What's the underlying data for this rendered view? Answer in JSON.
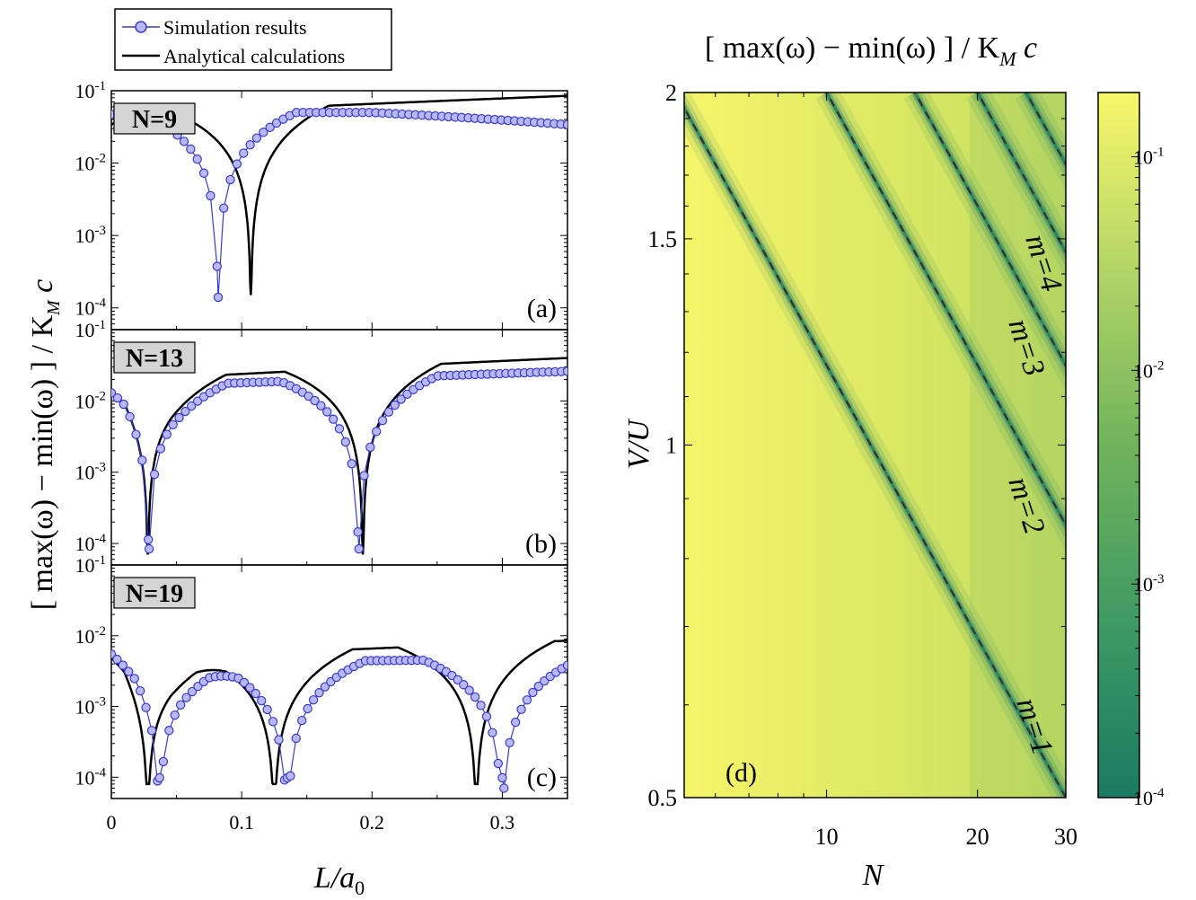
{
  "colors": {
    "simulation": "#3a3acc",
    "simulation_fill": "#b8b8f5",
    "analytical": "#000000",
    "tag_bg": "#d4d4d4",
    "cmap_low": "#1b7a62",
    "cmap_mid": "#8fc157",
    "cmap_high": "#f9f76a"
  },
  "legend": {
    "simulation": "Simulation results",
    "analytical": "Analytical calculations"
  },
  "left_ylabel": {
    "main": "[ max(ω) − min(ω) ] / K",
    "sub": "M",
    "tail": " c"
  },
  "left_xlabel": {
    "main": "L/a",
    "sub": "0"
  },
  "left_ticks": [
    "0",
    "0.1",
    "0.2",
    "0.3"
  ],
  "chart_data": [
    {
      "type": "line",
      "panel": "(a)",
      "tag": "N=9",
      "xlabel": "L/a0",
      "ylabel": "[max(ω) − min(ω)] / K_M c",
      "xlim": [
        0,
        0.35
      ],
      "ylim": [
        5e-05,
        0.1
      ],
      "yscale": "log",
      "ytick_labels": [
        "10-4",
        "10-3",
        "10-2",
        "10-1"
      ],
      "series": [
        {
          "name": "Simulation results",
          "dips": [
            0.082
          ],
          "min": 0.0001,
          "y0": 0.047,
          "plateau": 0.05,
          "end": 0.034,
          "tail": 0.0,
          "points": 70
        },
        {
          "name": "Analytical calculations",
          "dips": [
            0.107
          ],
          "min": 0.00015,
          "y0": 0.034,
          "plateau": 0.048,
          "end": 0.085,
          "tail": 1.0
        }
      ]
    },
    {
      "type": "line",
      "panel": "(b)",
      "tag": "N=13",
      "xlabel": "L/a0",
      "ylabel": "[max(ω) − min(ω)] / K_M c",
      "xlim": [
        0,
        0.35
      ],
      "ylim": [
        5e-05,
        0.1
      ],
      "yscale": "log",
      "ytick_labels": [
        "10-4",
        "10-3",
        "10-2",
        "10-1"
      ],
      "series": [
        {
          "name": "Simulation results",
          "dips": [
            0.029,
            0.19
          ],
          "min": 6e-05,
          "y0": 0.013,
          "plateau": 0.016,
          "end": 0.026,
          "tail": 1.0,
          "points": 75
        },
        {
          "name": "Analytical calculations",
          "dips": [
            0.028,
            0.193
          ],
          "min": 7e-05,
          "y0": 0.013,
          "plateau": 0.02,
          "end": 0.04,
          "tail": 1.0
        }
      ]
    },
    {
      "type": "line",
      "panel": "(c)",
      "tag": "N=19",
      "xlabel": "L/a0",
      "ylabel": "[max(ω) − min(ω)] / K_M c",
      "xlim": [
        0,
        0.35
      ],
      "ylim": [
        5e-05,
        0.1
      ],
      "yscale": "log",
      "ytick_labels": [
        "10-4",
        "10-3",
        "10-2",
        "10-1"
      ],
      "series": [
        {
          "name": "Simulation results",
          "dips": [
            0.037,
            0.135,
            0.3
          ],
          "min": 7e-05,
          "y0": 0.0055,
          "plateau": 0.0042,
          "end": 0.0047,
          "tail": 1.0,
          "points": 80
        },
        {
          "name": "Analytical calculations",
          "dips": [
            0.028,
            0.125,
            0.28
          ],
          "min": 8e-05,
          "y0": 0.0048,
          "plateau": 0.0048,
          "end": 0.0085,
          "tail": 1.0
        }
      ]
    },
    {
      "type": "heatmap",
      "panel": "(d)",
      "title": "[max(ω) − min(ω)] / K_M c",
      "xlabel": "N",
      "ylabel": "V/U",
      "xlim": [
        5,
        30
      ],
      "xscale": "log",
      "ylim": [
        0.5,
        2
      ],
      "yscale": "log",
      "x_ticks": [
        10,
        20,
        30
      ],
      "y_ticks": [
        0.5,
        1,
        1.5,
        2
      ],
      "colorbar": {
        "range": [
          0.0001,
          0.2
        ],
        "scale": "log",
        "tick_labels": [
          "10-4",
          "10-3",
          "10-2",
          "10-1"
        ]
      },
      "mode_lines": [
        {
          "label": "m=1",
          "N_at_V05": 30,
          "N_at_V2": 5
        },
        {
          "label": "m=2",
          "N_at_V05": 60,
          "N_at_V2": 10
        },
        {
          "label": "m=3",
          "N_at_V05": 90,
          "N_at_V2": 15
        },
        {
          "label": "m=4",
          "N_at_V05": 120,
          "N_at_V2": 20
        },
        {
          "label": "",
          "N_at_V05": 150,
          "N_at_V2": 25
        }
      ]
    }
  ],
  "right_title": {
    "main": "[ max(ω) − min(ω) ] / K",
    "sub": "M",
    "tail": " c"
  },
  "right_xlabel": "N",
  "right_ylabel": "V/U"
}
